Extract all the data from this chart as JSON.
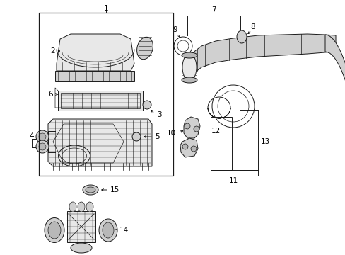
{
  "bg_color": "#ffffff",
  "fig_width": 4.89,
  "fig_height": 3.6,
  "dpi": 100,
  "line_color": "#1a1a1a",
  "fill_light": "#e8e8e8",
  "fill_mid": "#d0d0d0",
  "fill_dark": "#b8b8b8"
}
